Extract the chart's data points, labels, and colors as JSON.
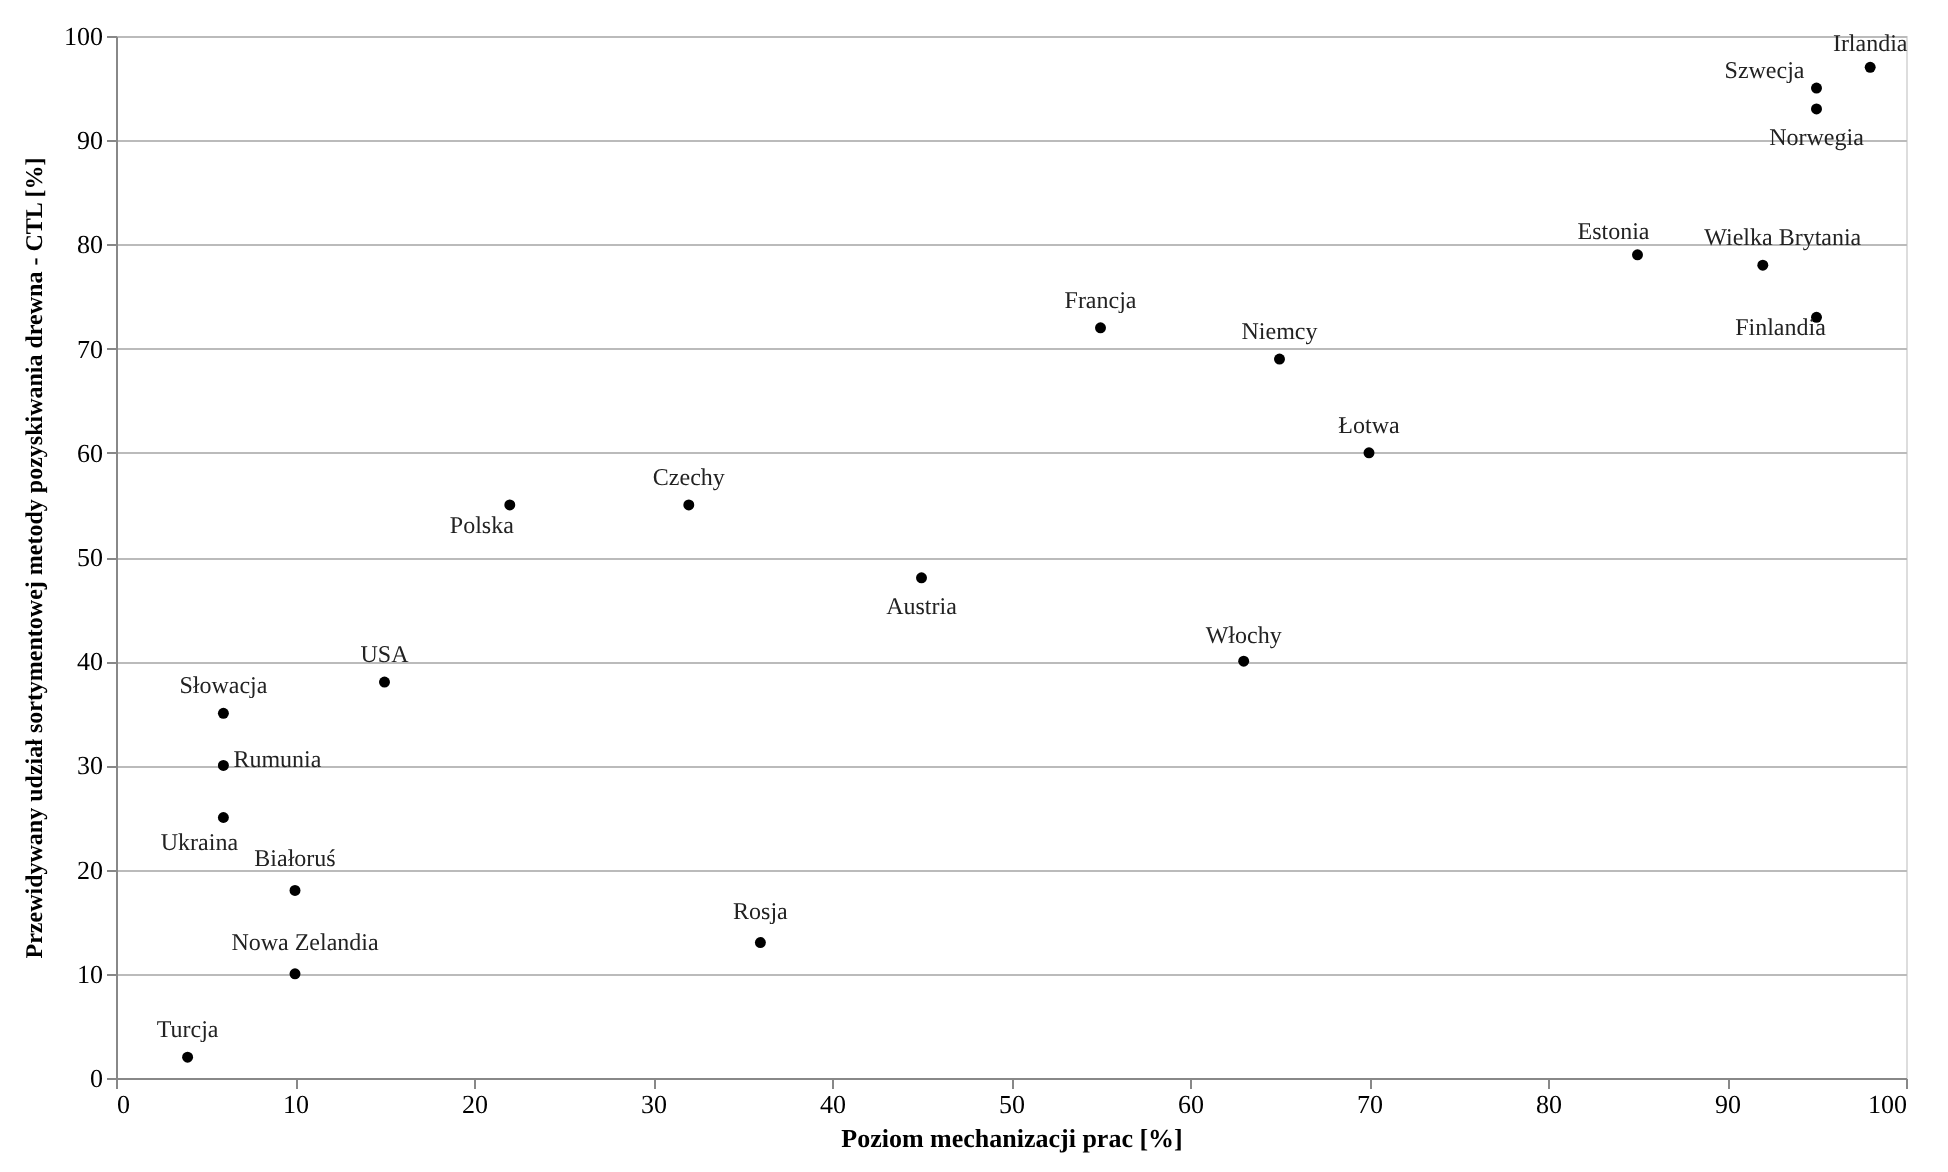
{
  "chart_data": {
    "type": "scatter",
    "xlabel": "Poziom mechanizacji prac [%]",
    "ylabel": "Przewidywany udział sortymentowej metody pozyskiwania drewna - CTL [%]",
    "x": [
      98,
      95,
      95,
      85,
      92,
      95,
      55,
      65,
      70,
      22,
      32,
      45,
      63,
      15,
      6,
      6,
      6,
      10,
      36,
      10,
      4
    ],
    "values": [
      97,
      95,
      93,
      79,
      78,
      73,
      72,
      69,
      60,
      55,
      55,
      48,
      40,
      38,
      35,
      30,
      25,
      18,
      13,
      10,
      2
    ],
    "color": "#000000",
    "marker": "circle",
    "xlim": [
      0,
      100
    ],
    "xticks": [
      0,
      10,
      20,
      30,
      40,
      50,
      60,
      70,
      80,
      90,
      100
    ],
    "ylim": [
      0,
      100
    ],
    "yticks": [
      0,
      10,
      20,
      30,
      40,
      50,
      60,
      70,
      80,
      90,
      100
    ],
    "grid": "y",
    "annotations": [
      {
        "text": "Irlandia",
        "x": 98,
        "y": 97
      },
      {
        "text": "Szwecja",
        "x": 95,
        "y": 95
      },
      {
        "text": "Norwegia",
        "x": 95,
        "y": 93
      },
      {
        "text": "Estonia",
        "x": 85,
        "y": 79
      },
      {
        "text": "Wielka Brytania",
        "x": 92,
        "y": 78
      },
      {
        "text": "Finlandia",
        "x": 95,
        "y": 73
      },
      {
        "text": "Francja",
        "x": 55,
        "y": 72
      },
      {
        "text": "Niemcy",
        "x": 65,
        "y": 69
      },
      {
        "text": "Łotwa",
        "x": 70,
        "y": 60
      },
      {
        "text": "Polska",
        "x": 22,
        "y": 55
      },
      {
        "text": "Czechy",
        "x": 32,
        "y": 55
      },
      {
        "text": "Austria",
        "x": 45,
        "y": 48
      },
      {
        "text": "Włochy",
        "x": 63,
        "y": 40
      },
      {
        "text": "USA",
        "x": 15,
        "y": 38
      },
      {
        "text": "Słowacja",
        "x": 6,
        "y": 35
      },
      {
        "text": "Rumunia",
        "x": 6,
        "y": 30
      },
      {
        "text": "Ukraina",
        "x": 6,
        "y": 25
      },
      {
        "text": "Białoruś",
        "x": 10,
        "y": 18
      },
      {
        "text": "Rosja",
        "x": 36,
        "y": 13
      },
      {
        "text": "Nowa Zelandia",
        "x": 10,
        "y": 10
      },
      {
        "text": "Turcja",
        "x": 4,
        "y": 2
      }
    ]
  }
}
